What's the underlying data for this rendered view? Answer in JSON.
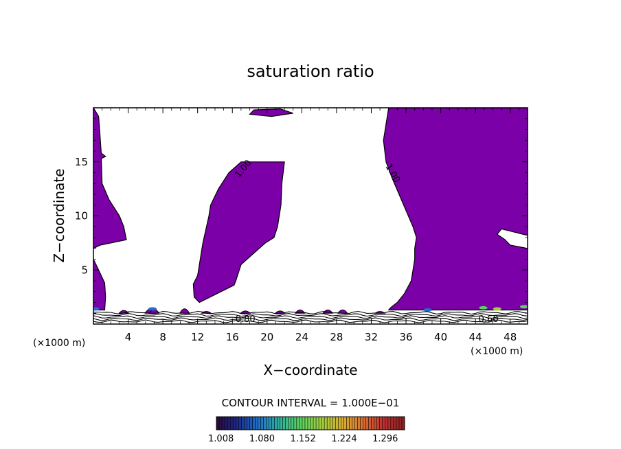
{
  "chart_data": {
    "type": "contour",
    "title": "saturation ratio",
    "xlabel": "X−coordinate",
    "ylabel": "Z−coordinate",
    "x_unit_left": "(×1000 m)",
    "x_unit_right": "(×1000 m)",
    "xlim": [
      0,
      50
    ],
    "ylim": [
      0,
      20
    ],
    "x_ticks": [
      "4",
      "8",
      "12",
      "16",
      "20",
      "24",
      "28",
      "32",
      "36",
      "40",
      "44",
      "48"
    ],
    "y_ticks": [
      "5",
      "10",
      "15"
    ],
    "x_tick_values": [
      4,
      8,
      12,
      16,
      20,
      24,
      28,
      32,
      36,
      40,
      44,
      48
    ],
    "y_tick_values": [
      5,
      10,
      15
    ],
    "contour_interval_text": "CONTOUR INTERVAL = 1.000E−01",
    "contour_labels": [
      {
        "text": "1.00",
        "x": 17.5,
        "y": 14.2
      },
      {
        "text": "1.00",
        "x": 34.2,
        "y": 13.8
      },
      {
        "text": "0.80",
        "x": 17.5,
        "y": 0.2
      },
      {
        "text": "0.60",
        "x": 45.5,
        "y": 0.2
      }
    ],
    "fill_color": "#7b00a8",
    "colorbar": {
      "tick_labels": [
        "1.008",
        "1.080",
        "1.152",
        "1.224",
        "1.296"
      ],
      "vmin": 1.0,
      "vmax": 1.33,
      "colors": [
        "#2a0a3a",
        "#1c2a8a",
        "#1f6fc8",
        "#2fb0a0",
        "#5ad060",
        "#a0d040",
        "#d8b030",
        "#d87030",
        "#c03030",
        "#8a2020"
      ]
    },
    "regions": [
      {
        "name": "left-edge",
        "points": [
          [
            0,
            20
          ],
          [
            0.6,
            19.2
          ],
          [
            0.8,
            17
          ],
          [
            0.9,
            15.8
          ],
          [
            1.4,
            15.5
          ],
          [
            0.9,
            15.3
          ],
          [
            1.0,
            13
          ],
          [
            1.8,
            11.5
          ],
          [
            3,
            10
          ],
          [
            3.5,
            9
          ],
          [
            3.8,
            7.8
          ],
          [
            2,
            7.5
          ],
          [
            0.8,
            7.3
          ],
          [
            0,
            7
          ]
        ]
      },
      {
        "name": "left-lower",
        "points": [
          [
            0,
            6
          ],
          [
            0.6,
            5
          ],
          [
            1.3,
            3.8
          ],
          [
            1.4,
            2.5
          ],
          [
            1.3,
            1.3
          ],
          [
            0,
            1.3
          ]
        ]
      },
      {
        "name": "top-sliver",
        "points": [
          [
            18,
            19.4
          ],
          [
            18.5,
            19.8
          ],
          [
            21.5,
            19.9
          ],
          [
            23,
            19.5
          ],
          [
            20.5,
            19.2
          ]
        ]
      },
      {
        "name": "central-plume",
        "points": [
          [
            22,
            15
          ],
          [
            21.7,
            13
          ],
          [
            21.6,
            11
          ],
          [
            21.4,
            10
          ],
          [
            21.2,
            9
          ],
          [
            20.8,
            8
          ],
          [
            19.8,
            7.5
          ],
          [
            17,
            5.5
          ],
          [
            16.4,
            4
          ],
          [
            16.2,
            3.6
          ],
          [
            12.2,
            2
          ],
          [
            11.6,
            2.5
          ],
          [
            11.5,
            3.7
          ],
          [
            12,
            4.5
          ],
          [
            12.3,
            6
          ],
          [
            12.6,
            7.5
          ],
          [
            13.3,
            10
          ],
          [
            13.5,
            11
          ],
          [
            14.4,
            12.5
          ],
          [
            15.6,
            14
          ],
          [
            17,
            15
          ]
        ]
      },
      {
        "name": "right-block",
        "points": [
          [
            50,
            20
          ],
          [
            34,
            20
          ],
          [
            33.7,
            18.5
          ],
          [
            33.4,
            17
          ],
          [
            33.7,
            15
          ],
          [
            34.4,
            13.5
          ],
          [
            35.2,
            12
          ],
          [
            36,
            10.5
          ],
          [
            36.8,
            9
          ],
          [
            37.2,
            8
          ],
          [
            37,
            7
          ],
          [
            37,
            6
          ],
          [
            36.8,
            5
          ],
          [
            36.6,
            4
          ],
          [
            35.8,
            2.8
          ],
          [
            35,
            2
          ],
          [
            34.2,
            1.5
          ],
          [
            34,
            1.3
          ],
          [
            50,
            1.3
          ],
          [
            50,
            7
          ],
          [
            48,
            7.3
          ],
          [
            47.4,
            7.8
          ],
          [
            46.5,
            8.3
          ],
          [
            47,
            8.8
          ],
          [
            50,
            8.2
          ]
        ]
      }
    ],
    "bumps": [
      [
        6.5,
        1.6
      ],
      [
        3.5,
        1.4
      ],
      [
        7,
        1.6
      ],
      [
        10.5,
        1.7
      ],
      [
        13,
        1.2
      ],
      [
        17.5,
        1.3
      ],
      [
        21.5,
        1.3
      ],
      [
        23.8,
        1.5
      ],
      [
        27,
        1.5
      ],
      [
        28.7,
        1.5
      ],
      [
        33,
        1.2
      ]
    ],
    "hot_spots": [
      [
        0.2,
        1.4,
        "#1f6fc8"
      ],
      [
        6.8,
        1.4,
        "#1f6fc8"
      ],
      [
        44.9,
        1.5,
        "#5ad060"
      ],
      [
        46.5,
        1.4,
        "#a0d040"
      ],
      [
        38.5,
        1.3,
        "#1f6fc8"
      ],
      [
        49.6,
        1.6,
        "#5ad060"
      ]
    ]
  }
}
